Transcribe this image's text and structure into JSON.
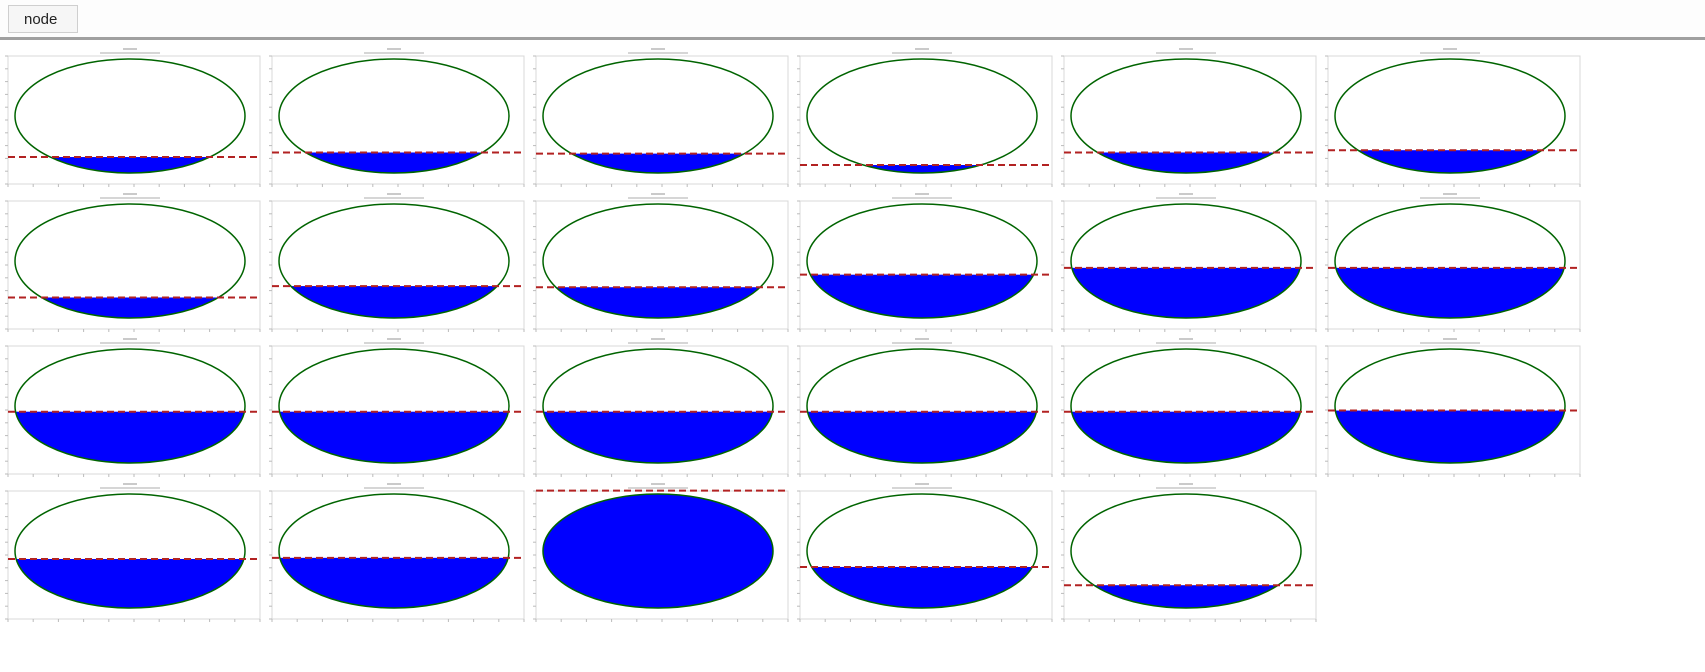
{
  "toolbar": {
    "button": "node"
  },
  "panels": [
    {
      "level": 0.14
    },
    {
      "level": 0.18
    },
    {
      "level": 0.17
    },
    {
      "level": 0.07
    },
    {
      "level": 0.18
    },
    {
      "level": 0.2
    },
    {
      "level": 0.18
    },
    {
      "level": 0.28
    },
    {
      "level": 0.27
    },
    {
      "level": 0.38
    },
    {
      "level": 0.44
    },
    {
      "level": 0.44
    },
    {
      "level": 0.45
    },
    {
      "level": 0.45
    },
    {
      "level": 0.45
    },
    {
      "level": 0.45
    },
    {
      "level": 0.45
    },
    {
      "level": 0.46
    },
    {
      "level": 0.43
    },
    {
      "level": 0.44
    },
    {
      "level": 1.03
    },
    {
      "level": 0.36
    },
    {
      "level": 0.2
    }
  ]
}
